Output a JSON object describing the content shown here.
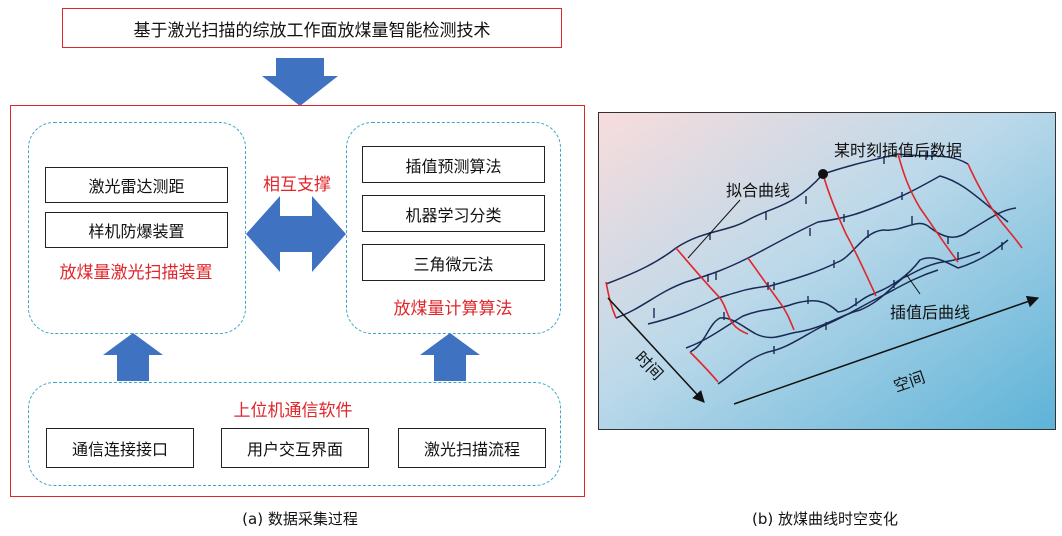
{
  "top_title": "基于激光扫描的综放工作面放煤量智能检测技术",
  "left_panel": {
    "device_group": {
      "items": [
        "激光雷达测距",
        "样机防爆装置"
      ],
      "label": "放煤量激光扫描装置"
    },
    "mutual_support_label": "相互支撑",
    "algorithm_group": {
      "items": [
        "插值预测算法",
        "机器学习分类",
        "三角微元法"
      ],
      "label": "放煤量计算算法"
    },
    "software_group": {
      "label": "上位机通信软件",
      "items": [
        "通信连接接口",
        "用户交互界面",
        "激光扫描流程"
      ]
    },
    "caption": "(a) 数据采集过程"
  },
  "right_panel": {
    "labels": {
      "interp_point": "某时刻插值后数据",
      "fit_curve": "拟合曲线",
      "interp_curve": "插值后曲线",
      "time_axis": "时间",
      "space_axis": "空间"
    },
    "caption": "(b) 放煤曲线时空变化"
  },
  "colors": {
    "accent_red": "#e0262b",
    "arrow_blue": "#3f73c1",
    "dash_cyan": "#3aa7c9",
    "curve_navy": "#1b2a55"
  }
}
